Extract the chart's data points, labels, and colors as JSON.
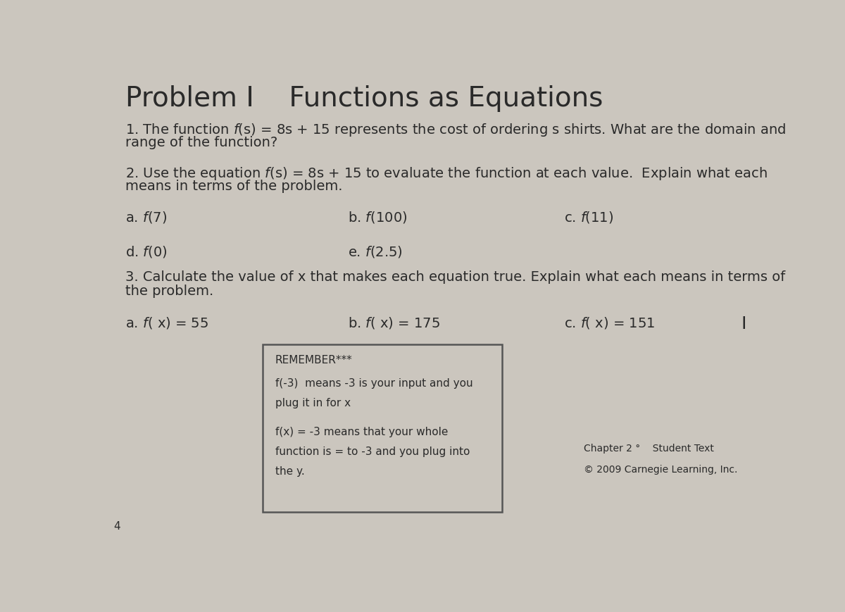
{
  "title": "Problem I    Functions as Equations",
  "background_color": "#cbc6be",
  "text_color": "#2a2a2a",
  "q1_line1": "1. The function $\\it{f}$(s) = 8s + 15 represents the cost of ordering s shirts. What are the domain and",
  "q1_line2": "range of the function?",
  "q2_line1": "2. Use the equation $\\it{f}$(s) = 8s + 15 to evaluate the function at each value.  Explain what each",
  "q2_line2": "means in terms of the problem.",
  "q2a": "a. $\\it{f}$(7)",
  "q2b": "b. $\\it{f}$(100)",
  "q2c": "c. $\\it{f}$(11)",
  "q2d": "d. $\\it{f}$(0)",
  "q2e": "e. $\\it{f}$(2.5)",
  "q3_line1": "3. Calculate the value of x that makes each equation true. Explain what each means in terms of",
  "q3_line2": "the problem.",
  "q3a": "a. $\\it{f}$( x) = 55",
  "q3b": "b. $\\it{f}$( x) = 175",
  "q3c": "c. $\\it{f}$( x) = 151",
  "remember_title": "REMEMBER***",
  "remember_line1": "f(-3)  means -3 is your input and you",
  "remember_line2": "plug it in for x",
  "remember_line3": "f(x) = -3 means that your whole",
  "remember_line4": "function is = to -3 and you plug into",
  "remember_line5": "the y.",
  "footer_line1": "Chapter 2 °    Student Text",
  "footer_line2": "© 2009 Carnegie Learning, Inc.",
  "box_bg": "#cbc6be",
  "box_border": "#555555",
  "title_fontsize": 28,
  "body_fontsize": 14,
  "item_fontsize": 14,
  "small_fontsize": 11
}
